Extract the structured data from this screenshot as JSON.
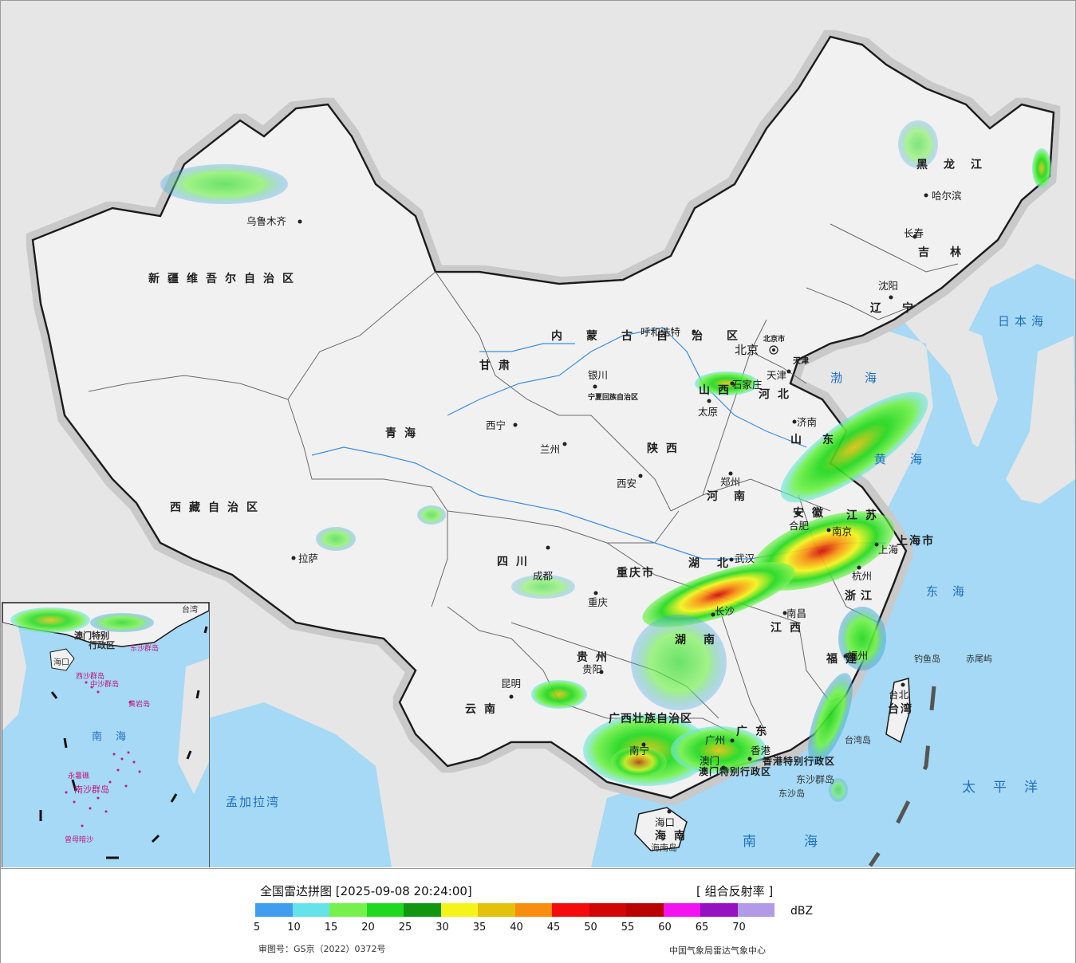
{
  "map": {
    "provinces": [
      {
        "name": "新疆维吾尔自治区"
      },
      {
        "name": "西藏自治区"
      },
      {
        "name": "青海"
      },
      {
        "name": "甘肃"
      },
      {
        "name": "四川"
      },
      {
        "name": "云南"
      },
      {
        "name": "贵州"
      },
      {
        "name": "广西壮族自治区"
      },
      {
        "name": "广东"
      },
      {
        "name": "海南"
      },
      {
        "name": "内蒙古自治区"
      },
      {
        "name": "黑龙江"
      },
      {
        "name": "吉林"
      },
      {
        "name": "辽宁"
      },
      {
        "name": "河北"
      },
      {
        "name": "山西"
      },
      {
        "name": "陕西"
      },
      {
        "name": "河南"
      },
      {
        "name": "山东"
      },
      {
        "name": "江苏"
      },
      {
        "name": "安徽"
      },
      {
        "name": "浙江"
      },
      {
        "name": "江西"
      },
      {
        "name": "福建"
      },
      {
        "name": "湖北"
      },
      {
        "name": "湖南"
      },
      {
        "name": "重庆市"
      },
      {
        "name": "上海市"
      },
      {
        "name": "宁夏回族自治区"
      },
      {
        "name": "台湾"
      },
      {
        "name": "北京市"
      },
      {
        "name": "天津"
      },
      {
        "name": "香港特别行政区"
      },
      {
        "name": "澳门特别行政区"
      }
    ],
    "cities": [
      {
        "name": "乌鲁木齐"
      },
      {
        "name": "拉萨"
      },
      {
        "name": "西宁"
      },
      {
        "name": "兰州"
      },
      {
        "name": "成都"
      },
      {
        "name": "重庆"
      },
      {
        "name": "昆明"
      },
      {
        "name": "贵阳"
      },
      {
        "name": "南宁"
      },
      {
        "name": "广州"
      },
      {
        "name": "香港"
      },
      {
        "name": "澳门"
      },
      {
        "name": "海口"
      },
      {
        "name": "呼和浩特"
      },
      {
        "name": "银川"
      },
      {
        "name": "西安"
      },
      {
        "name": "太原"
      },
      {
        "name": "石家庄"
      },
      {
        "name": "北京"
      },
      {
        "name": "天津"
      },
      {
        "name": "济南"
      },
      {
        "name": "郑州"
      },
      {
        "name": "合肥"
      },
      {
        "name": "南京"
      },
      {
        "name": "上海"
      },
      {
        "name": "杭州"
      },
      {
        "name": "武汉"
      },
      {
        "name": "长沙"
      },
      {
        "name": "南昌"
      },
      {
        "name": "福州"
      },
      {
        "name": "台北"
      },
      {
        "name": "哈尔滨"
      },
      {
        "name": "长春"
      },
      {
        "name": "沈阳"
      }
    ],
    "seas": [
      {
        "name": "日本海"
      },
      {
        "name": "渤海"
      },
      {
        "name": "黄海"
      },
      {
        "name": "东海"
      },
      {
        "name": "太平洋"
      },
      {
        "name": "南海"
      },
      {
        "name": "孟加拉湾"
      }
    ],
    "islands": [
      {
        "name": "钓鱼岛"
      },
      {
        "name": "赤尾屿"
      },
      {
        "name": "台湾岛"
      },
      {
        "name": "东沙群岛"
      },
      {
        "name": "东沙岛"
      },
      {
        "name": "海南岛"
      }
    ],
    "inset": [
      {
        "name": "海口"
      },
      {
        "name": "澳门特别"
      },
      {
        "name": "行政区"
      },
      {
        "name": "台湾"
      },
      {
        "name": "东沙群岛"
      },
      {
        "name": "西沙群岛"
      },
      {
        "name": "中沙群岛"
      },
      {
        "name": "黄岩岛"
      },
      {
        "name": "南"
      },
      {
        "name": "海"
      },
      {
        "name": "永暑礁"
      },
      {
        "name": "南沙群岛"
      },
      {
        "name": "曾母暗沙"
      }
    ],
    "colors": {
      "land": "#f1f1f1",
      "outside": "#e6e6e6",
      "water": "#a5d9f5",
      "border": "#1a1a1a"
    }
  },
  "legend": {
    "title": "全国雷达拼图 [2025-09-08 20:24:00]",
    "product": "[ 组合反射率 ]",
    "unit": "dBZ",
    "colors": [
      "#3f9ef0",
      "#65e3ea",
      "#74f24b",
      "#1fd91e",
      "#129612",
      "#f5f41a",
      "#e3c20b",
      "#f98d0d",
      "#f40c0c",
      "#d10606",
      "#b90303",
      "#f213f0",
      "#9611c2",
      "#b29ae9"
    ],
    "ticks": [
      "5",
      "10",
      "15",
      "20",
      "25",
      "30",
      "35",
      "40",
      "45",
      "50",
      "55",
      "60",
      "65",
      "70"
    ],
    "approval": "审图号：GS京（2022）0372号",
    "source": "中国气象局雷达气象中心"
  }
}
